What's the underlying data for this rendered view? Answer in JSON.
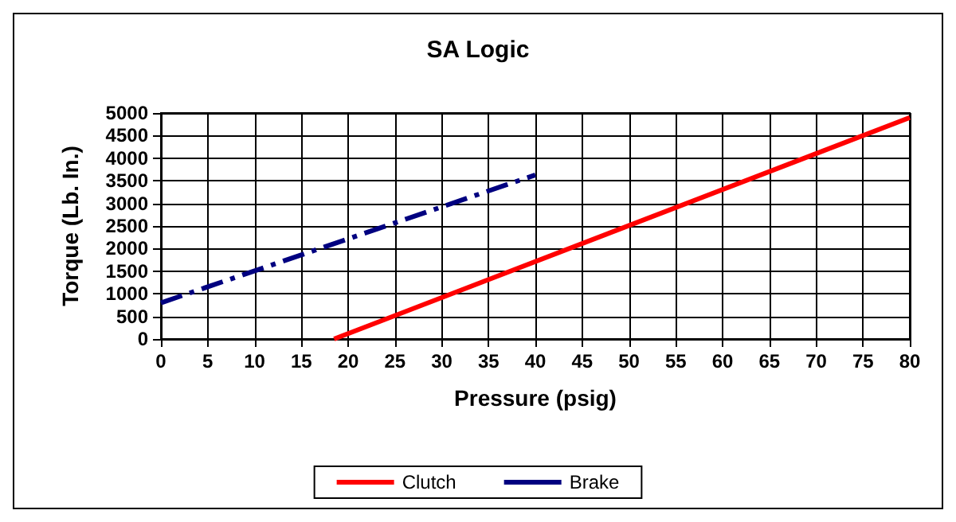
{
  "chart_data": {
    "type": "line",
    "title": "SA Logic",
    "xlabel": "Pressure (psig)",
    "ylabel": "Torque (Lb. In.)",
    "xlim": [
      0,
      80
    ],
    "xticks": [
      0,
      5,
      10,
      15,
      20,
      25,
      30,
      35,
      40,
      45,
      50,
      55,
      60,
      65,
      70,
      75,
      80
    ],
    "ylim": [
      0,
      5000
    ],
    "yticks": [
      0,
      500,
      1000,
      1500,
      2000,
      2500,
      3000,
      3500,
      4000,
      4500,
      5000
    ],
    "grid": true,
    "legend": "bottom",
    "marker": "none",
    "series": [
      {
        "name": "Clutch",
        "color": "#ff0000",
        "line_style": "solid",
        "x": [
          18.5,
          80
        ],
        "values": [
          0,
          4900
        ]
      },
      {
        "name": "Brake",
        "color": "#000080",
        "line_style": "dashed",
        "x": [
          0,
          40
        ],
        "values": [
          800,
          3630
        ]
      }
    ]
  }
}
